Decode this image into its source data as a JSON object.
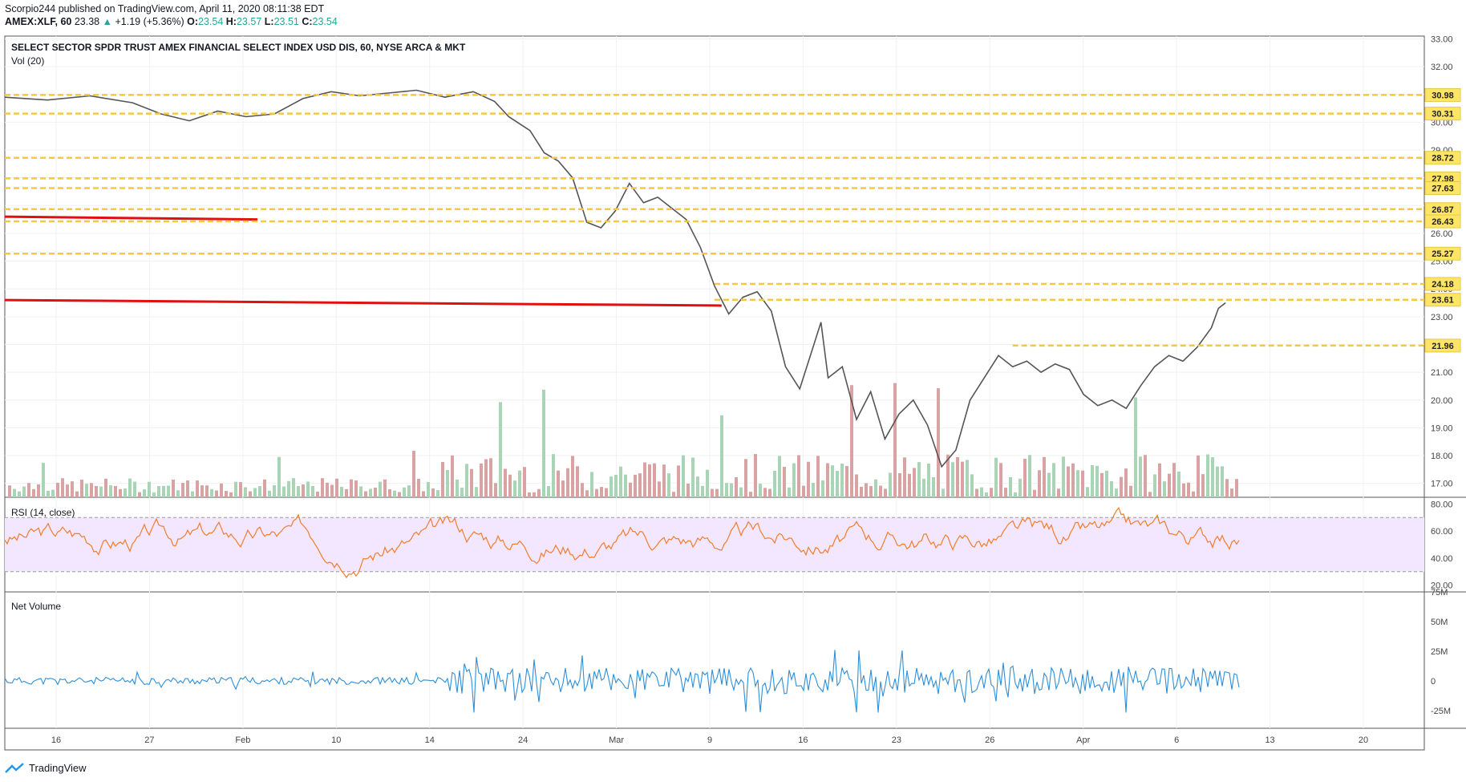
{
  "header": {
    "publisher_line": "Scorpio244 published on TradingView.com, April 11, 2020 08:11:38 EDT",
    "symbol": "AMEX:XLF, 60",
    "last": "23.38",
    "change_arrow": "▲",
    "change": "+1.19 (+5.36%)",
    "open_label": "O:",
    "open": "23.54",
    "high_label": "H:",
    "high": "23.57",
    "low_label": "L:",
    "low": "23.51",
    "close_label": "C:",
    "close": "23.54"
  },
  "main_pane": {
    "title": "SELECT SECTOR SPDR TRUST AMEX FINANCIAL SELECT INDEX USD DIS, 60, NYSE ARCA & MKT",
    "volume_label": "Vol (20)"
  },
  "rsi_pane": {
    "title": "RSI (14, close)"
  },
  "net_volume_pane": {
    "title": "Net Volume"
  },
  "footer": {
    "brand": "TradingView"
  },
  "colors": {
    "level_line": "#f5c842",
    "level_badge": "#ffe566",
    "trend_line": "#e01010",
    "rsi_line": "#f07e2d",
    "rsi_band": "#f3e6ff",
    "net_volume_line": "#2e8fd8",
    "up_volume": "#a8d5b5",
    "down_volume": "#d9a3a3"
  },
  "chart_data": [
    {
      "type": "line",
      "title": "SELECT SECTOR SPDR TRUST AMEX FINANCIAL SELECT INDEX USD DIS, 60, NYSE ARCA & MKT",
      "x_ticks": [
        "16",
        "27",
        "Feb",
        "10",
        "14",
        "24",
        "Mar",
        "9",
        "16",
        "23",
        "26",
        "Apr",
        "6",
        "13",
        "20"
      ],
      "y_ticks": [
        "33.00",
        "32.00",
        "31.00",
        "30.00",
        "29.00",
        "28.00",
        "27.00",
        "26.00",
        "25.00",
        "24.00",
        "23.00",
        "22.00",
        "21.00",
        "20.00",
        "19.00",
        "18.00",
        "17.00"
      ],
      "ylim": [
        16.5,
        33.1
      ],
      "price_path": [
        [
          0,
          30.9
        ],
        [
          0.03,
          30.8
        ],
        [
          0.06,
          30.95
        ],
        [
          0.09,
          30.7
        ],
        [
          0.11,
          30.3
        ],
        [
          0.13,
          30.05
        ],
        [
          0.15,
          30.4
        ],
        [
          0.17,
          30.2
        ],
        [
          0.19,
          30.3
        ],
        [
          0.21,
          30.85
        ],
        [
          0.23,
          31.1
        ],
        [
          0.25,
          30.95
        ],
        [
          0.27,
          31.05
        ],
        [
          0.29,
          31.15
        ],
        [
          0.31,
          30.9
        ],
        [
          0.33,
          31.1
        ],
        [
          0.345,
          30.75
        ],
        [
          0.355,
          30.2
        ],
        [
          0.37,
          29.7
        ],
        [
          0.38,
          28.9
        ],
        [
          0.39,
          28.6
        ],
        [
          0.4,
          28.0
        ],
        [
          0.41,
          26.4
        ],
        [
          0.42,
          26.2
        ],
        [
          0.43,
          26.8
        ],
        [
          0.44,
          27.8
        ],
        [
          0.45,
          27.1
        ],
        [
          0.46,
          27.3
        ],
        [
          0.47,
          26.9
        ],
        [
          0.48,
          26.5
        ],
        [
          0.49,
          25.5
        ],
        [
          0.5,
          24.1
        ],
        [
          0.51,
          23.1
        ],
        [
          0.52,
          23.7
        ],
        [
          0.53,
          23.9
        ],
        [
          0.54,
          23.2
        ],
        [
          0.55,
          21.2
        ],
        [
          0.56,
          20.4
        ],
        [
          0.57,
          22.0
        ],
        [
          0.575,
          22.8
        ],
        [
          0.58,
          20.8
        ],
        [
          0.59,
          21.2
        ],
        [
          0.6,
          19.3
        ],
        [
          0.61,
          20.3
        ],
        [
          0.62,
          18.6
        ],
        [
          0.63,
          19.5
        ],
        [
          0.64,
          20.0
        ],
        [
          0.65,
          19.1
        ],
        [
          0.66,
          17.6
        ],
        [
          0.67,
          18.2
        ],
        [
          0.68,
          20.0
        ],
        [
          0.69,
          20.8
        ],
        [
          0.7,
          21.6
        ],
        [
          0.71,
          21.2
        ],
        [
          0.72,
          21.4
        ],
        [
          0.73,
          21.0
        ],
        [
          0.74,
          21.3
        ],
        [
          0.75,
          21.1
        ],
        [
          0.76,
          20.2
        ],
        [
          0.77,
          19.8
        ],
        [
          0.78,
          20.0
        ],
        [
          0.79,
          19.7
        ],
        [
          0.8,
          20.5
        ],
        [
          0.81,
          21.2
        ],
        [
          0.82,
          21.6
        ],
        [
          0.83,
          21.4
        ],
        [
          0.84,
          21.9
        ],
        [
          0.85,
          22.6
        ],
        [
          0.855,
          23.3
        ],
        [
          0.86,
          23.5
        ]
      ]
    },
    {
      "type": "line",
      "name_label": "RSI (14, close)",
      "y_ticks": [
        "80.00",
        "60.00",
        "40.00",
        "20.00"
      ],
      "ylim": [
        15,
        85
      ],
      "band": [
        30,
        70
      ]
    },
    {
      "type": "line",
      "name_label": "Net Volume",
      "y_ticks": [
        "75M",
        "50M",
        "25M",
        "0",
        "-25M"
      ],
      "ylim": [
        -40,
        75
      ]
    }
  ],
  "levels": [
    {
      "label": "30.98",
      "value": 30.98
    },
    {
      "label": "30.31",
      "value": 30.31
    },
    {
      "label": "28.72",
      "value": 28.72
    },
    {
      "label": "27.98",
      "value": 27.98
    },
    {
      "label": "27.63",
      "value": 27.63
    },
    {
      "label": "26.87",
      "value": 26.87
    },
    {
      "label": "26.43",
      "value": 26.43
    },
    {
      "label": "25.27",
      "value": 25.27
    },
    {
      "label": "24.18",
      "value": 24.18
    },
    {
      "label": "23.61",
      "value": 23.61
    },
    {
      "label": "21.96",
      "value": 21.96
    }
  ]
}
